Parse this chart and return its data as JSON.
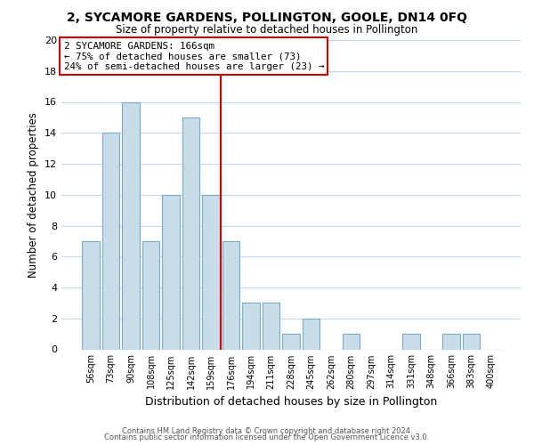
{
  "title": "2, SYCAMORE GARDENS, POLLINGTON, GOOLE, DN14 0FQ",
  "subtitle": "Size of property relative to detached houses in Pollington",
  "xlabel": "Distribution of detached houses by size in Pollington",
  "ylabel": "Number of detached properties",
  "bar_labels": [
    "56sqm",
    "73sqm",
    "90sqm",
    "108sqm",
    "125sqm",
    "142sqm",
    "159sqm",
    "176sqm",
    "194sqm",
    "211sqm",
    "228sqm",
    "245sqm",
    "262sqm",
    "280sqm",
    "297sqm",
    "314sqm",
    "331sqm",
    "348sqm",
    "366sqm",
    "383sqm",
    "400sqm"
  ],
  "bar_values": [
    7,
    14,
    16,
    7,
    10,
    15,
    10,
    7,
    3,
    3,
    1,
    2,
    0,
    1,
    0,
    0,
    1,
    0,
    1,
    1,
    0
  ],
  "bar_color": "#c8dcea",
  "bar_edge_color": "#7aaac8",
  "vline_x": 6.5,
  "vline_color": "#cc0000",
  "ylim": [
    0,
    20
  ],
  "yticks": [
    0,
    2,
    4,
    6,
    8,
    10,
    12,
    14,
    16,
    18,
    20
  ],
  "annotation_title": "2 SYCAMORE GARDENS: 166sqm",
  "annotation_line1": "← 75% of detached houses are smaller (73)",
  "annotation_line2": "24% of semi-detached houses are larger (23) →",
  "annotation_box_edge": "#cc0000",
  "footer1": "Contains HM Land Registry data © Crown copyright and database right 2024.",
  "footer2": "Contains public sector information licensed under the Open Government Licence v3.0.",
  "bg_color": "#ffffff",
  "grid_color": "#c8d8e8"
}
